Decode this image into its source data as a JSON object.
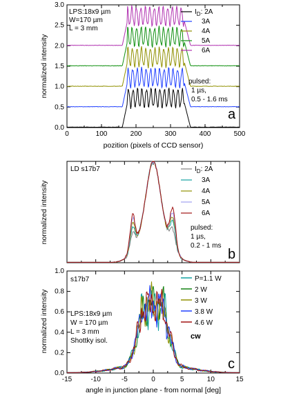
{
  "chart_data": [
    {
      "panel": "a",
      "type": "line",
      "xlabel": "pozition (pixels of CCD sensor)",
      "ylabel": "normalized intensity",
      "xlim": [
        0,
        500
      ],
      "ylim": [
        0,
        3.0
      ],
      "xticks": [
        "0",
        "50",
        "100",
        "150",
        "200",
        "250",
        "300",
        "350",
        "400",
        "450",
        "500"
      ],
      "yticks": [
        "0.0",
        "0.5",
        "1.0",
        "1.5",
        "2.0",
        "2.5",
        "3.0"
      ],
      "legend_title": "I_D: 2A",
      "legend_position": "top-right",
      "annotation_top_left": [
        "LPS:18x9 µm",
        "W=170 µm",
        "L = 3 mm"
      ],
      "annotation_right": [
        "pulsed:",
        "1 µs,",
        "0.5 - 1.6 ms"
      ],
      "panel_letter": "a",
      "profile": {
        "rise_start": 160,
        "flat_start": 175,
        "flat_end": 340,
        "fall_end": 358,
        "ripple_period": 13
      },
      "series": [
        {
          "name": "2A",
          "color": "#000000",
          "offset": 0.0,
          "peak": 1.0
        },
        {
          "name": "3A",
          "color": "#1f3fff",
          "offset": 0.5,
          "peak": 1.0
        },
        {
          "name": "4A",
          "color": "#909000",
          "offset": 1.0,
          "peak": 1.0
        },
        {
          "name": "5A",
          "color": "#109010",
          "offset": 1.5,
          "peak": 1.0
        },
        {
          "name": "6A",
          "color": "#b030b0",
          "offset": 2.0,
          "peak": 1.0
        }
      ],
      "legend_labels": [
        "3A",
        "4A",
        "5A",
        "6A"
      ]
    },
    {
      "panel": "b",
      "type": "line",
      "xlabel": "",
      "ylabel": "normalized  intensity",
      "xlim": [
        -15,
        15
      ],
      "ylim": [
        0,
        1
      ],
      "legend_title": "I_D: 2A",
      "legend_position": "top-right",
      "annotation_top_left": [
        "LD  s17b7"
      ],
      "annotation_right": [
        "pulsed:",
        "1 µs,",
        "0.2 - 1 ms"
      ],
      "panel_letter": "b",
      "series": [
        {
          "name": "2A",
          "color": "#808080",
          "shoulder": 0.2
        },
        {
          "name": "3A",
          "color": "#10a0a0",
          "shoulder": 0.28
        },
        {
          "name": "4A",
          "color": "#909000",
          "shoulder": 0.33
        },
        {
          "name": "5A",
          "color": "#a0a0f0",
          "shoulder": 0.38
        },
        {
          "name": "6A",
          "color": "#a01010",
          "shoulder": 0.43
        }
      ],
      "legend_labels": [
        "3A",
        "4A",
        "5A",
        "6A"
      ]
    },
    {
      "panel": "c",
      "type": "line",
      "xlabel": "angle in  junction plane - from normal  [deg]",
      "ylabel": "normalized  intensity",
      "xlim": [
        -15,
        15
      ],
      "ylim": [
        0,
        1.0
      ],
      "xticks": [
        "-15",
        "-10",
        "-5",
        "0",
        "5",
        "10",
        "15"
      ],
      "yticks": [
        "0.0",
        "0.2",
        "0.4",
        "0.6",
        "0.8",
        "1.0"
      ],
      "legend_position": "top-right",
      "annotation_top_left": [
        "s17b7"
      ],
      "annotation_middle_left": [
        "LPS:18x9 µm",
        "W = 170 µm",
        "L = 3 mm",
        "Shottky isol."
      ],
      "mode_label": "cw",
      "panel_letter": "c",
      "series": [
        {
          "name": "P=1.1 W",
          "color": "#10a0a0"
        },
        {
          "name": "2 W",
          "color": "#108010"
        },
        {
          "name": "3 W",
          "color": "#909000"
        },
        {
          "name": "3.8 W",
          "color": "#1f3fff"
        },
        {
          "name": "4.6 W",
          "color": "#a01010"
        }
      ]
    }
  ]
}
